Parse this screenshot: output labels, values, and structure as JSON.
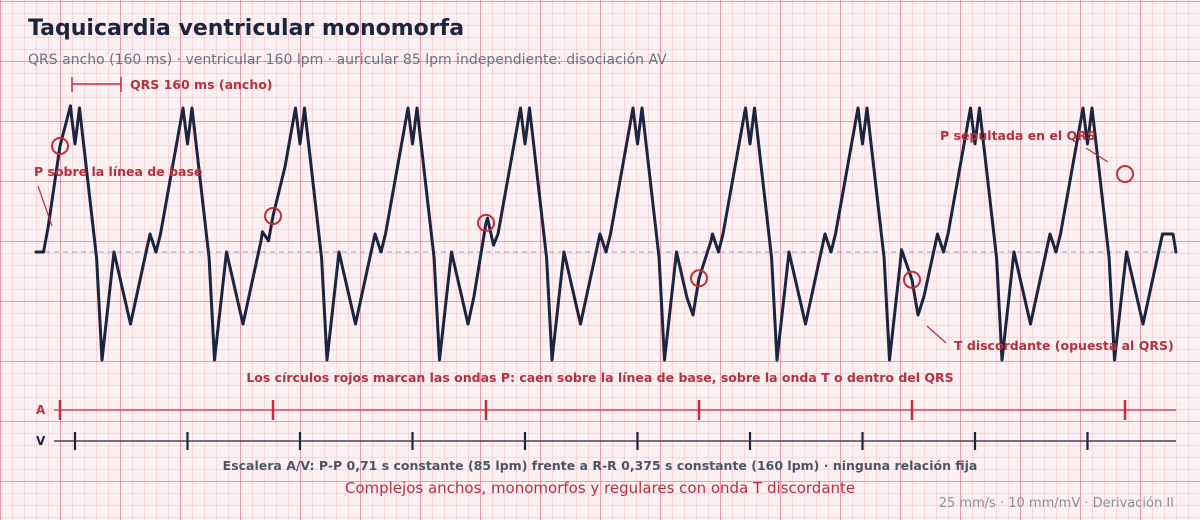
{
  "header": {
    "title": "Taquicardia ventricular monomorfa",
    "subtitle": "QRS ancho (160 ms) · ventricular 160 lpm · auricular 85 lpm independiente: disociación AV"
  },
  "chart_data": {
    "type": "line",
    "lead": "II",
    "beats_ventricular_s": [
      0.24,
      0.615,
      0.99,
      1.365,
      1.74,
      2.115,
      2.49,
      2.865,
      3.24,
      3.615
    ],
    "p_waves_s": [
      0.08,
      0.79,
      1.5,
      2.21,
      2.92,
      3.63
    ],
    "p_wave_positions": [
      "baseline",
      "on-t",
      "after-qrs",
      "on-t",
      "on-t",
      "in-qrs"
    ],
    "qrs_duration_ms": 160,
    "ventricular_rate_bpm": 160,
    "atrial_rate_bpm": 85,
    "pp_interval_s": 0.71,
    "rr_interval_s": 0.375,
    "x_range_s": [
      0,
      3.8
    ],
    "y_range_mv": [
      -1.7,
      2.5
    ],
    "grid": true,
    "annotations": {
      "qrs_width": "QRS 160 ms (ancho)",
      "p_baseline": "P sobre la línea de base",
      "p_buried": "P sepultada en el QRS",
      "t_discordant": "T discordante (opuesta al QRS)",
      "circles_note": "Los círculos rojos marcan las ondas P: caen sobre la línea de base, sobre la onda T o dentro del QRS"
    },
    "ladder": {
      "a_label": "A",
      "v_label": "V",
      "caption": "Escalera A/V: P-P 0,71 s constante (85 lpm) frente a R-R 0,375 s constante (160 lpm) · ninguna relación fija"
    },
    "conclusion": "Complejos anchos, monomorfos y regulares con onda T discordante"
  },
  "footer": {
    "scale": "25 mm/s · 10 mm/mV · Derivación II"
  },
  "colors": {
    "trace": "#1b2540",
    "accent_red": "#c0303a",
    "annotation_red": "#b5323d",
    "baseline": "#9aa0c8",
    "grid_major": "#dc6e82",
    "paper": "#fdf0f2"
  }
}
